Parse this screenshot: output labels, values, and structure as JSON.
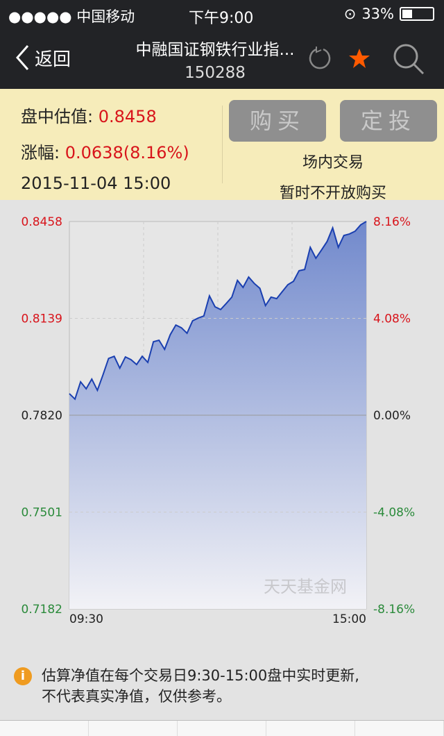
{
  "status_bar": {
    "carrier": "●●●●● 中国移动",
    "time": "下午9:00",
    "battery": "33%"
  },
  "nav": {
    "back_label": "返回",
    "title": "中融国证钢铁行业指...",
    "code": "150288"
  },
  "info": {
    "estimate_label": "盘中估值:",
    "estimate_value": "0.8458",
    "change_label": "涨幅:",
    "change_value": "0.0638",
    "change_pct": "(8.16%)",
    "datetime": "2015-11-04 15:00",
    "buy_label": "购买",
    "auto_invest_label": "定投",
    "note1": "场内交易",
    "note2": "暂时不开放购买"
  },
  "colors": {
    "up": "#d8141b",
    "down": "#2a8a3a",
    "line": "#1a3fb0",
    "star": "#ff5a00"
  },
  "chart_data": {
    "type": "area",
    "x_labels": [
      "09:30",
      "15:00"
    ],
    "y_ticks": [
      "0.8458",
      "0.8139",
      "0.7820",
      "0.7501",
      "0.7182"
    ],
    "pct_ticks": [
      "8.16%",
      "4.08%",
      "0.00%",
      "-4.08%",
      "-8.16%"
    ],
    "ylim": [
      0.7182,
      0.8458
    ],
    "base": 0.782,
    "grid": true,
    "watermark": "天天基金网",
    "values": [
      0.7891,
      0.7873,
      0.793,
      0.7907,
      0.7939,
      0.7902,
      0.7953,
      0.8007,
      0.8014,
      0.7975,
      0.8012,
      0.8003,
      0.7987,
      0.8014,
      0.7994,
      0.8062,
      0.8067,
      0.8037,
      0.8085,
      0.8117,
      0.8108,
      0.809,
      0.8131,
      0.814,
      0.8147,
      0.8213,
      0.8177,
      0.8168,
      0.8188,
      0.8209,
      0.8264,
      0.8241,
      0.8275,
      0.8254,
      0.8238,
      0.8181,
      0.8209,
      0.8204,
      0.8227,
      0.825,
      0.8261,
      0.8296,
      0.83,
      0.8373,
      0.8337,
      0.8364,
      0.8392,
      0.8437,
      0.8373,
      0.8412,
      0.8417,
      0.8426,
      0.8447,
      0.8458
    ]
  },
  "footnote": {
    "line1": "估算净值在每个交易日9:30-15:00盘中实时更新,",
    "line2": "不代表真实净值，仅供参考。"
  }
}
